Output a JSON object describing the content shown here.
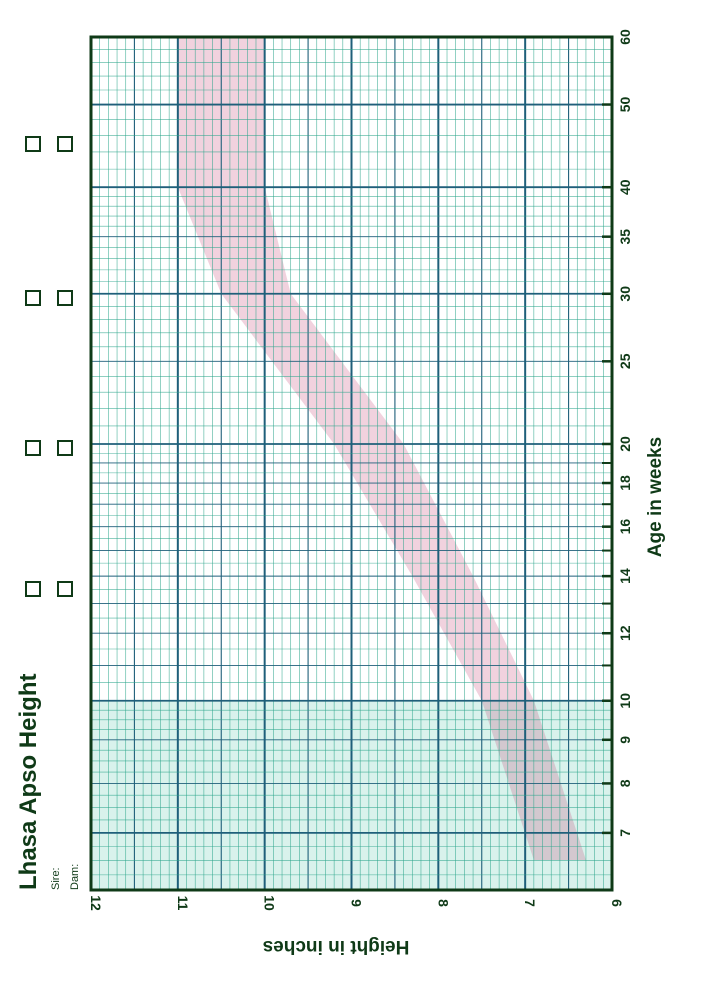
{
  "chart_data": {
    "type": "line",
    "title": "Lhasa Apso Height",
    "sire_label": "Sire:",
    "dam_label": "Dam:",
    "xlabel": "Age in weeks",
    "ylabel": "Height in inches",
    "x_scale": "log",
    "xlim": [
      6,
      60
    ],
    "ylim": [
      6,
      12
    ],
    "x_tick_labels": [
      "7",
      "8",
      "9",
      "10",
      "12",
      "14",
      "16",
      "18",
      "20",
      "25",
      "30",
      "35",
      "40",
      "50",
      "60"
    ],
    "y_tick_labels": [
      "6",
      "7",
      "8",
      "9",
      "10",
      "11",
      "12"
    ],
    "grid": true,
    "orientation": "rotated 90 degrees counter-clockwise",
    "checkbox_columns": 2,
    "checkbox_rows": 5,
    "band": {
      "name": "",
      "color": "#c0306a",
      "x": [
        6.5,
        10,
        14,
        20,
        30,
        40,
        60
      ],
      "y_low": [
        6.3,
        6.9,
        7.6,
        8.4,
        9.7,
        10.0,
        10.0
      ],
      "y_high": [
        6.9,
        7.5,
        8.3,
        9.2,
        10.5,
        11.0,
        11.0
      ]
    }
  },
  "colors": {
    "background": "#ffffff",
    "grid_minor": "#2aa58a",
    "grid_major": "#1f5f7a",
    "frame": "#0f3a17",
    "text": "#0f3a17",
    "shade": "#bfe9df"
  }
}
